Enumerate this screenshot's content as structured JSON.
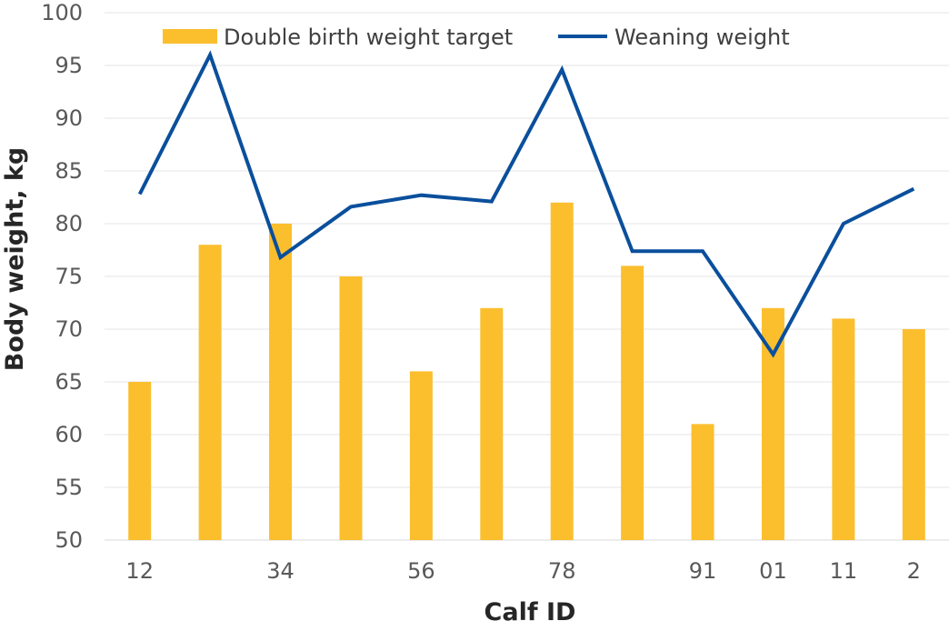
{
  "chart_data": {
    "type": "bar+line",
    "title": "",
    "xlabel": "Calf ID",
    "ylabel": "Body weight, kg",
    "ylim": [
      50,
      100
    ],
    "ytick_step": 5,
    "grid": true,
    "legend_position": "top",
    "categories": [
      "12",
      "",
      "34",
      "",
      "56",
      "",
      "78",
      "",
      "91",
      "01",
      "11",
      "2"
    ],
    "series": [
      {
        "name": "Double birth weight target",
        "kind": "bar",
        "color": "#FBBF2E",
        "values": [
          65,
          78,
          80,
          75,
          66,
          72,
          82,
          76,
          61,
          72,
          71,
          70
        ]
      },
      {
        "name": "Weaning weight",
        "kind": "line",
        "color": "#0A4F9C",
        "values": [
          82.8,
          96,
          76.8,
          81.6,
          82.7,
          82.1,
          94.6,
          77.4,
          77.4,
          67.6,
          80,
          83.3
        ]
      }
    ]
  }
}
